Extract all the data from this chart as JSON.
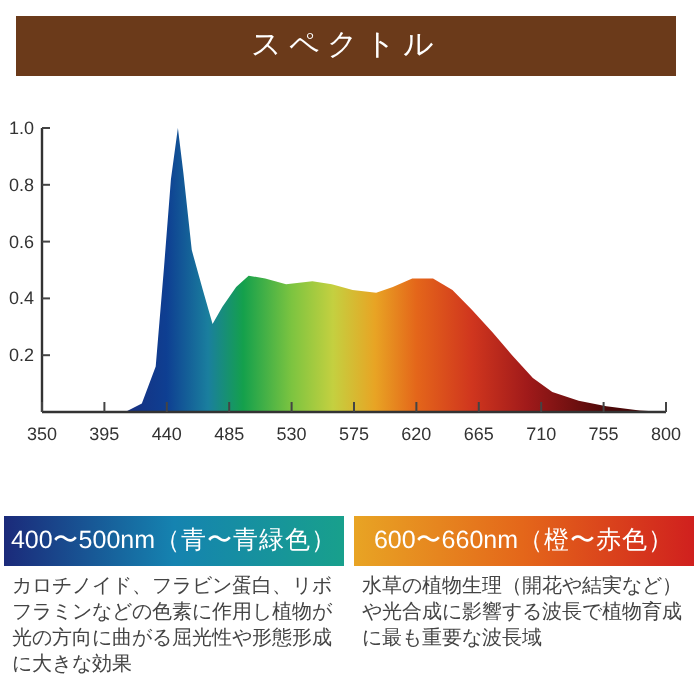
{
  "chart_data": {
    "type": "area",
    "title": "スペクトル",
    "x": [
      410,
      422,
      432,
      438,
      443,
      448,
      452,
      458,
      466,
      473,
      480,
      490,
      499,
      511,
      526,
      545,
      559,
      574,
      591,
      603,
      617,
      632,
      646,
      660,
      675,
      689,
      704,
      718,
      737,
      757,
      781,
      800
    ],
    "series": [
      {
        "values": [
          0,
          0.03,
          0.16,
          0.51,
          0.82,
          1.0,
          0.84,
          0.57,
          0.43,
          0.31,
          0.37,
          0.44,
          0.48,
          0.47,
          0.45,
          0.46,
          0.45,
          0.43,
          0.42,
          0.44,
          0.47,
          0.47,
          0.43,
          0.36,
          0.28,
          0.2,
          0.12,
          0.07,
          0.04,
          0.02,
          0.005,
          0
        ]
      }
    ],
    "xlim": [
      350,
      800
    ],
    "xticks": [
      350,
      395,
      440,
      485,
      530,
      575,
      620,
      665,
      710,
      755,
      800
    ],
    "ylim": [
      0,
      1.0
    ],
    "yticks": [
      {
        "value": 0.2,
        "label": "0.2"
      },
      {
        "value": 0.4,
        "label": "0.4"
      },
      {
        "value": 0.6,
        "label": "0.6"
      },
      {
        "value": 0.8,
        "label": "0.8"
      },
      {
        "value": 1.0,
        "label": "1.0"
      }
    ],
    "annotations": [
      "400〜500nm（青〜青緑色）",
      "カロチノイド、フラビン蛋白、リボフラミンなどの色素に作用し植物が光の方向に曲がる屈光性や形態形成に大きな効果",
      "600〜660nm（橙〜赤色）",
      "水草の植物生理（開花や結実など）や光合成に影響する波長で植物育成に最も重要な波長域"
    ]
  }
}
